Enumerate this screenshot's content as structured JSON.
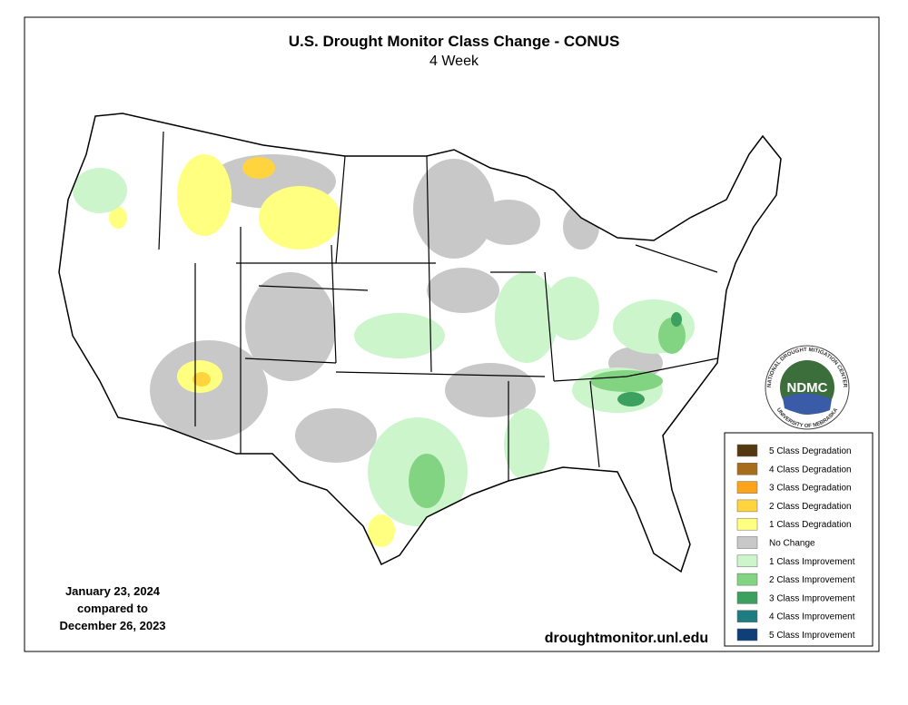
{
  "title": "U.S. Drought Monitor Class Change - CONUS",
  "subtitle": "4 Week",
  "date_lines": [
    "January 23, 2024",
    "compared to",
    "December 26, 2023"
  ],
  "url": "droughtmonitor.unl.edu",
  "logo": {
    "text": "NDMC",
    "ring_top": "NATIONAL DROUGHT MITIGATION CENTER",
    "ring_bottom": "UNIVERSITY OF NEBRASKA"
  },
  "legend": [
    {
      "label": "5 Class Degradation",
      "color": "#55380f"
    },
    {
      "label": "4 Class Degradation",
      "color": "#a86d1a"
    },
    {
      "label": "3 Class Degradation",
      "color": "#ffa31a"
    },
    {
      "label": "2 Class Degradation",
      "color": "#ffd43f"
    },
    {
      "label": "1 Class Degradation",
      "color": "#ffff80"
    },
    {
      "label": "No Change",
      "color": "#c8c8c8"
    },
    {
      "label": "1 Class Improvement",
      "color": "#ccf5cc"
    },
    {
      "label": "2 Class Improvement",
      "color": "#82d482"
    },
    {
      "label": "3 Class Improvement",
      "color": "#3ca05f"
    },
    {
      "label": "4 Class Improvement",
      "color": "#1e7d80"
    },
    {
      "label": "5 Class Improvement",
      "color": "#0f3f78"
    }
  ]
}
